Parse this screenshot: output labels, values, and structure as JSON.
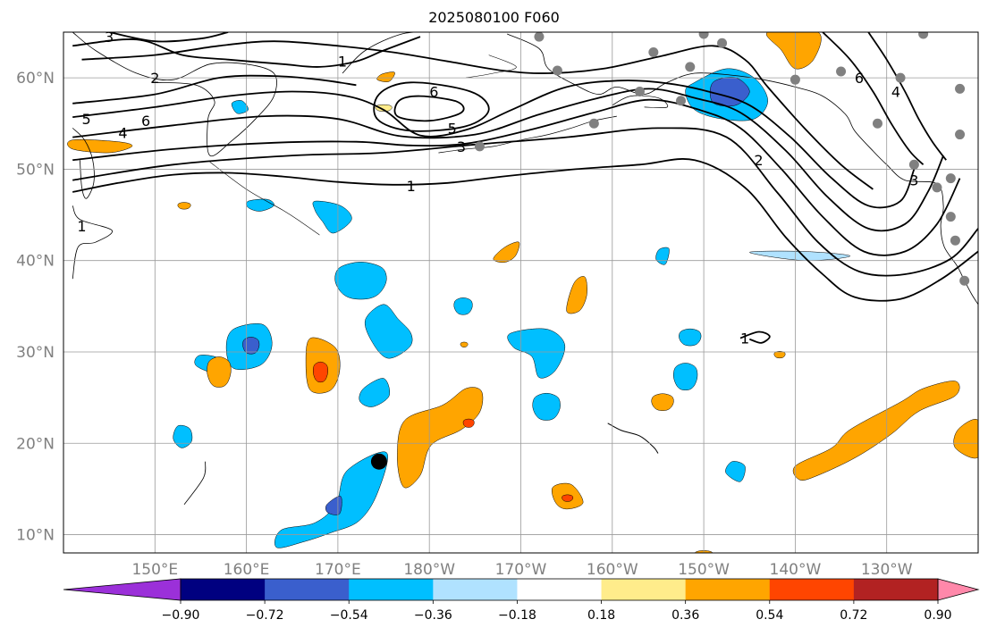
{
  "title": "2025080100 F060",
  "map": {
    "lon_range": [
      140,
      240
    ],
    "lat_range": [
      8,
      65
    ],
    "grid": true,
    "lon_ticks": [
      {
        "value": 150,
        "label": "150°E"
      },
      {
        "value": 160,
        "label": "160°E"
      },
      {
        "value": 170,
        "label": "170°E"
      },
      {
        "value": 180,
        "label": "180°W"
      },
      {
        "value": 190,
        "label": "170°W"
      },
      {
        "value": 200,
        "label": "160°W"
      },
      {
        "value": 210,
        "label": "150°W"
      },
      {
        "value": 220,
        "label": "140°W"
      },
      {
        "value": 230,
        "label": "130°W"
      }
    ],
    "lat_ticks": [
      {
        "value": 10,
        "label": "10°N"
      },
      {
        "value": 20,
        "label": "20°N"
      },
      {
        "value": 30,
        "label": "30°N"
      },
      {
        "value": 40,
        "label": "40°N"
      },
      {
        "value": 50,
        "label": "50°N"
      },
      {
        "value": 60,
        "label": "60°N"
      }
    ],
    "marker": {
      "lon": 174.5,
      "lat": 18
    },
    "stations": [
      {
        "lon": 185.5,
        "lat": 52.5
      },
      {
        "lon": 192,
        "lat": 64.5
      },
      {
        "lon": 194,
        "lat": 60.8
      },
      {
        "lon": 198,
        "lat": 55
      },
      {
        "lon": 203,
        "lat": 58.5
      },
      {
        "lon": 204.5,
        "lat": 62.8
      },
      {
        "lon": 207.5,
        "lat": 57.5
      },
      {
        "lon": 208.5,
        "lat": 61.2
      },
      {
        "lon": 210,
        "lat": 64.8
      },
      {
        "lon": 212,
        "lat": 63.8
      },
      {
        "lon": 220,
        "lat": 59.8
      },
      {
        "lon": 225,
        "lat": 60.7
      },
      {
        "lon": 229,
        "lat": 55
      },
      {
        "lon": 231.5,
        "lat": 60
      },
      {
        "lon": 233,
        "lat": 50.5
      },
      {
        "lon": 235.5,
        "lat": 48
      },
      {
        "lon": 237,
        "lat": 49
      },
      {
        "lon": 237,
        "lat": 44.8
      },
      {
        "lon": 237.5,
        "lat": 42.2
      },
      {
        "lon": 238,
        "lat": 53.8
      },
      {
        "lon": 238,
        "lat": 58.8
      },
      {
        "lon": 238.5,
        "lat": 37.8
      },
      {
        "lon": 234,
        "lat": 64.8
      }
    ]
  },
  "contours": {
    "color": "#000000",
    "labels": [
      {
        "text": "1",
        "lon": 178,
        "lat": 48.2
      },
      {
        "text": "3",
        "lon": 183.5,
        "lat": 52.5
      },
      {
        "text": "5",
        "lon": 182.5,
        "lat": 54.5
      },
      {
        "text": "6",
        "lon": 180.5,
        "lat": 58.5
      },
      {
        "text": "1",
        "lon": 170.5,
        "lat": 61.8
      },
      {
        "text": "2",
        "lon": 150,
        "lat": 60
      },
      {
        "text": "3",
        "lon": 145,
        "lat": 64.5
      },
      {
        "text": "5",
        "lon": 142.5,
        "lat": 55.5
      },
      {
        "text": "6",
        "lon": 149,
        "lat": 55.3
      },
      {
        "text": "4",
        "lon": 146.5,
        "lat": 54
      },
      {
        "text": "1",
        "lon": 142,
        "lat": 43.8
      },
      {
        "text": "2",
        "lon": 216,
        "lat": 51
      },
      {
        "text": "1",
        "lon": 214.5,
        "lat": 31.5
      },
      {
        "text": "6",
        "lon": 227,
        "lat": 60
      },
      {
        "text": "4",
        "lon": 231,
        "lat": 58.5
      },
      {
        "text": "3",
        "lon": 233,
        "lat": 48.8
      }
    ]
  },
  "colorbar": {
    "levels": [
      -0.9,
      -0.72,
      -0.54,
      -0.36,
      -0.18,
      0.18,
      0.36,
      0.54,
      0.72,
      0.9
    ],
    "tick_labels": [
      "−0.90",
      "−0.72",
      "−0.54",
      "−0.36",
      "−0.18",
      "0.18",
      "0.36",
      "0.54",
      "0.72",
      "0.90"
    ],
    "under_color": "#9b30d9",
    "over_color": "#ff88aa",
    "colors": [
      "#000080",
      "#3a5fcd",
      "#00bfff",
      "#b0e2ff",
      "#ffffff",
      "#ffec8b",
      "#ffa500",
      "#ff4500",
      "#b22222"
    ]
  }
}
